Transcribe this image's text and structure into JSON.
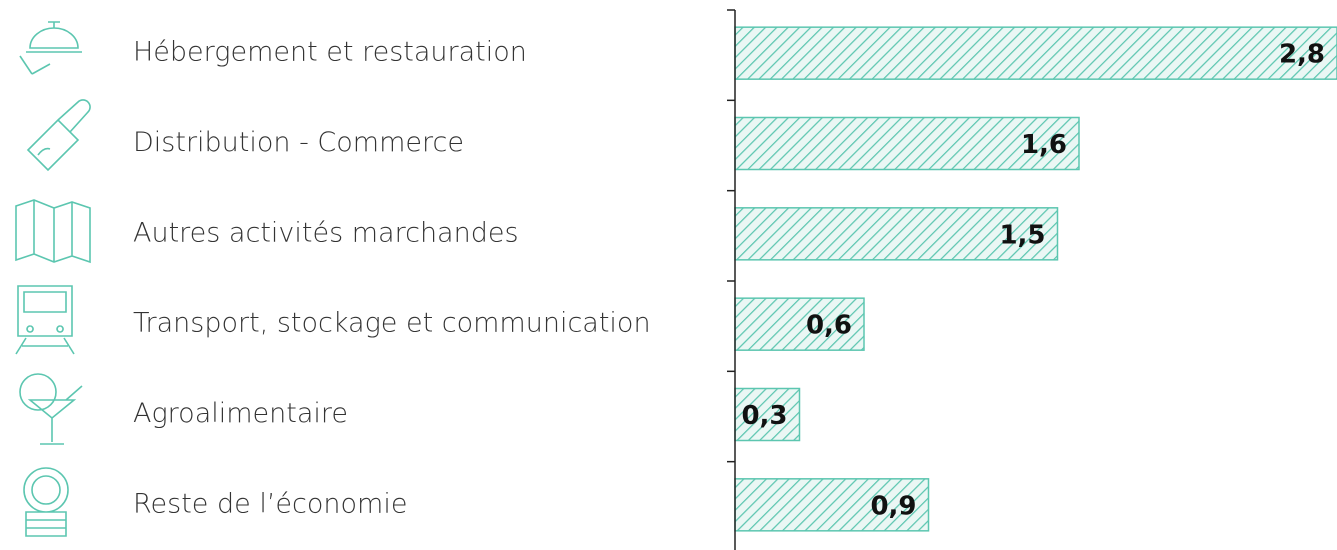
{
  "chart_data": {
    "type": "hbar",
    "categories": [
      "Hébergement et restauration",
      "Distribution - Commerce",
      "Autres activités marchandes",
      "Transport, stockage et communication",
      "Agroalimentaire",
      "Reste de l’économie"
    ],
    "values": [
      2.8,
      1.6,
      1.5,
      0.6,
      0.3,
      0.9
    ],
    "value_labels": [
      "2,8",
      "1,6",
      "1,5",
      "0,6",
      "0,3",
      "0,9"
    ],
    "color": "#5cc6b0",
    "xlim": [
      0,
      2.8
    ]
  }
}
